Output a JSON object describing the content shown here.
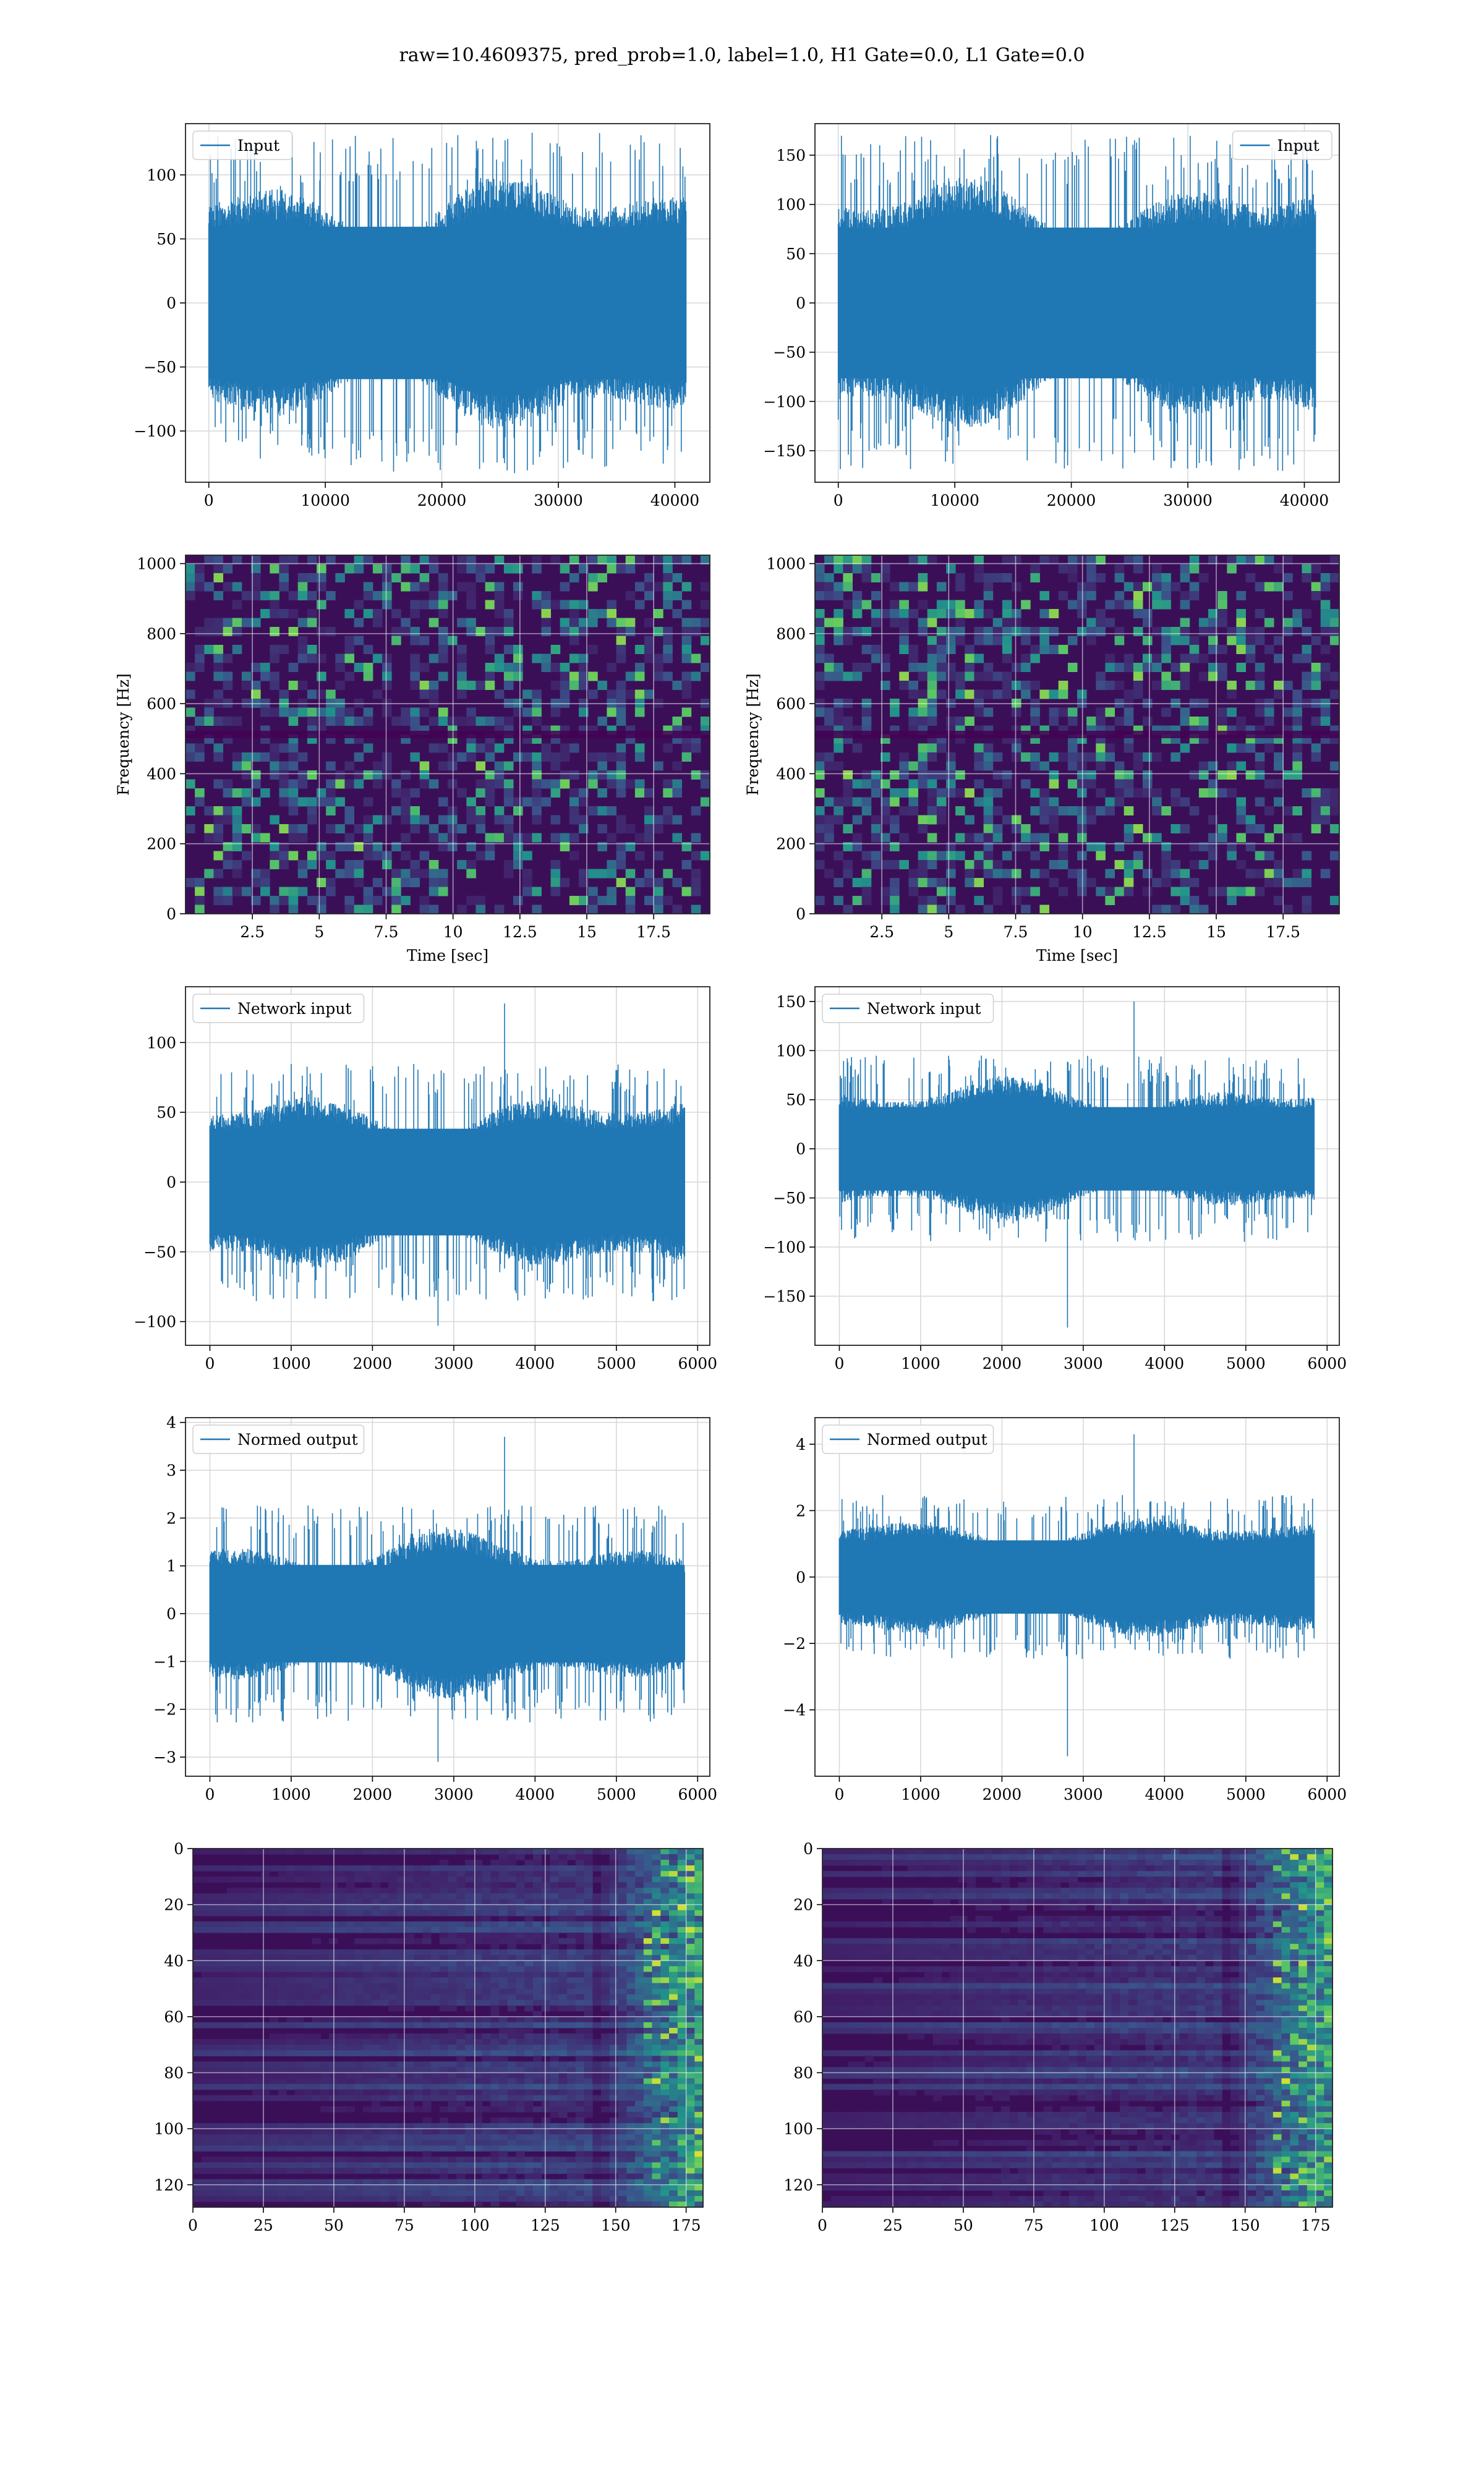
{
  "figure": {
    "suptitle": "raw=10.4609375, pred_prob=1.0, label=1.0, H1 Gate=0.0, L1 Gate=0.0",
    "colors": {
      "line": "#1f77b4",
      "grid": "#d9d9d9",
      "spec_bg": "#3b0f58",
      "spec_dark": "#440154"
    }
  },
  "chart_data": [
    {
      "type": "line",
      "panel": "row1-left",
      "title": "",
      "xlabel": "",
      "ylabel": "",
      "xlim": [
        -2000,
        43000
      ],
      "ylim": [
        -140,
        140
      ],
      "xticks": [
        0,
        10000,
        20000,
        30000,
        40000
      ],
      "yticks": [
        -100,
        -50,
        0,
        50,
        100
      ],
      "legend": {
        "label": "Input",
        "loc": "upper left"
      },
      "series": [
        {
          "name": "Input",
          "x_range": [
            0,
            40959
          ],
          "core_amplitude": 70,
          "peak_max": 127,
          "peak_min": -125
        }
      ]
    },
    {
      "type": "line",
      "panel": "row1-right",
      "title": "",
      "xlabel": "",
      "ylabel": "",
      "xlim": [
        -2000,
        43000
      ],
      "ylim": [
        -182,
        182
      ],
      "xticks": [
        0,
        10000,
        20000,
        30000,
        40000
      ],
      "yticks": [
        -150,
        -100,
        -50,
        0,
        50,
        100,
        150
      ],
      "legend": {
        "label": "Input",
        "loc": "upper right"
      },
      "series": [
        {
          "name": "Input",
          "x_range": [
            0,
            40959
          ],
          "core_amplitude": 90,
          "peak_max": 165,
          "peak_min": -165
        }
      ]
    },
    {
      "type": "heatmap",
      "panel": "row2-left",
      "title": "",
      "xlabel": "Time [sec]",
      "ylabel": "Frequency [Hz]",
      "xlim": [
        0,
        19.6
      ],
      "ylim": [
        0,
        1024
      ],
      "xticks": [
        2.5,
        5.0,
        7.5,
        10.0,
        12.5,
        15.0,
        17.5
      ],
      "yticks": [
        0,
        200,
        400,
        600,
        800,
        1000
      ],
      "colormap": "viridis"
    },
    {
      "type": "heatmap",
      "panel": "row2-right",
      "title": "",
      "xlabel": "Time [sec]",
      "ylabel": "Frequency [Hz]",
      "xlim": [
        0,
        19.6
      ],
      "ylim": [
        0,
        1024
      ],
      "xticks": [
        2.5,
        5.0,
        7.5,
        10.0,
        12.5,
        15.0,
        17.5
      ],
      "yticks": [
        0,
        200,
        400,
        600,
        800,
        1000
      ],
      "colormap": "viridis"
    },
    {
      "type": "line",
      "panel": "row3-left",
      "title": "",
      "xlabel": "",
      "ylabel": "",
      "xlim": [
        -300,
        6150
      ],
      "ylim": [
        -117,
        140
      ],
      "xticks": [
        0,
        1000,
        2000,
        3000,
        4000,
        5000,
        6000
      ],
      "yticks": [
        -100,
        -50,
        0,
        50,
        100
      ],
      "legend": {
        "label": "Network input",
        "loc": "upper left"
      },
      "series": [
        {
          "name": "Network input",
          "x_range": [
            0,
            5840
          ],
          "core_amplitude": 45,
          "peak_max": 128,
          "peak_min": -103
        }
      ]
    },
    {
      "type": "line",
      "panel": "row3-right",
      "title": "",
      "xlabel": "",
      "ylabel": "",
      "xlim": [
        -300,
        6150
      ],
      "ylim": [
        -200,
        165
      ],
      "xticks": [
        0,
        1000,
        2000,
        3000,
        4000,
        5000,
        6000
      ],
      "yticks": [
        -150,
        -100,
        -50,
        0,
        50,
        100,
        150
      ],
      "legend": {
        "label": "Network input",
        "loc": "upper left"
      },
      "series": [
        {
          "name": "Network input",
          "x_range": [
            0,
            5840
          ],
          "core_amplitude": 50,
          "peak_max": 150,
          "peak_min": -182
        }
      ]
    },
    {
      "type": "line",
      "panel": "row4-left",
      "title": "",
      "xlabel": "",
      "ylabel": "",
      "xlim": [
        -300,
        6150
      ],
      "ylim": [
        -3.4,
        4.1
      ],
      "xticks": [
        0,
        1000,
        2000,
        3000,
        4000,
        5000,
        6000
      ],
      "yticks": [
        -3,
        -2,
        -1,
        0,
        1,
        2,
        3,
        4
      ],
      "legend": {
        "label": "Normed output",
        "loc": "upper left"
      },
      "series": [
        {
          "name": "Normed output",
          "x_range": [
            0,
            5840
          ],
          "core_amplitude": 1.2,
          "peak_max": 3.7,
          "peak_min": -3.1
        }
      ]
    },
    {
      "type": "line",
      "panel": "row4-right",
      "title": "",
      "xlabel": "",
      "ylabel": "",
      "xlim": [
        -300,
        6150
      ],
      "ylim": [
        -6.0,
        4.8
      ],
      "xticks": [
        0,
        1000,
        2000,
        3000,
        4000,
        5000,
        6000
      ],
      "yticks": [
        -4,
        -2,
        0,
        2,
        4
      ],
      "legend": {
        "label": "Normed output",
        "loc": "upper left"
      },
      "series": [
        {
          "name": "Normed output",
          "x_range": [
            0,
            5840
          ],
          "core_amplitude": 1.3,
          "peak_max": 4.3,
          "peak_min": -5.4
        }
      ]
    },
    {
      "type": "heatmap",
      "panel": "row5-left",
      "title": "",
      "xlabel": "",
      "ylabel": "",
      "xlim": [
        0,
        181
      ],
      "ylim": [
        128,
        0
      ],
      "xticks": [
        0,
        25,
        50,
        75,
        100,
        125,
        150,
        175
      ],
      "yticks": [
        0,
        20,
        40,
        60,
        80,
        100,
        120
      ],
      "rows": 128,
      "cols": 181,
      "colormap": "viridis"
    },
    {
      "type": "heatmap",
      "panel": "row5-right",
      "title": "",
      "xlabel": "",
      "ylabel": "",
      "xlim": [
        0,
        181
      ],
      "ylim": [
        128,
        0
      ],
      "xticks": [
        0,
        25,
        50,
        75,
        100,
        125,
        150,
        175
      ],
      "yticks": [
        0,
        20,
        40,
        60,
        80,
        100,
        120
      ],
      "rows": 128,
      "cols": 181,
      "colormap": "viridis"
    }
  ]
}
